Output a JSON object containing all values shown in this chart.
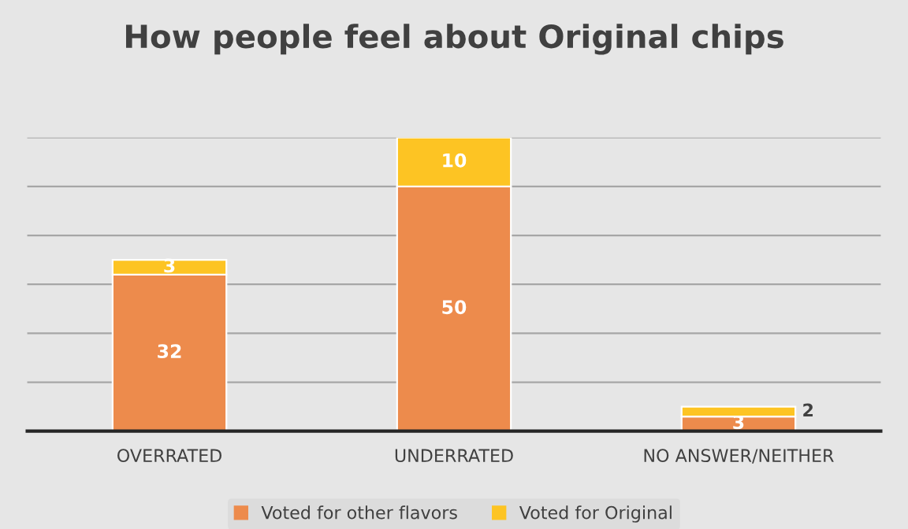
{
  "chart_data": {
    "type": "bar",
    "title": "How people feel about Original chips",
    "categories": [
      "OVERRATED",
      "UNDERRATED",
      "NO ANSWER/NEITHER"
    ],
    "series": [
      {
        "name": "Voted for other flavors",
        "color": "#ed8b4c",
        "values": [
          32,
          50,
          3
        ]
      },
      {
        "name": "Voted for Original",
        "color": "#fdc423",
        "values": [
          3,
          10,
          2
        ]
      }
    ],
    "stacked": true,
    "data_labels": true,
    "ylim": [
      0,
      60
    ],
    "yticks": [
      {
        "value": 0,
        "label": null
      },
      {
        "value": 10,
        "label": null
      },
      {
        "value": 20,
        "label": null
      },
      {
        "value": 30,
        "label": null
      },
      {
        "value": 40,
        "label": null
      },
      {
        "value": 50,
        "label": null
      },
      {
        "value": 60,
        "label": null
      }
    ],
    "grid": "y",
    "legend": "bottom",
    "tick_labels": "x"
  }
}
